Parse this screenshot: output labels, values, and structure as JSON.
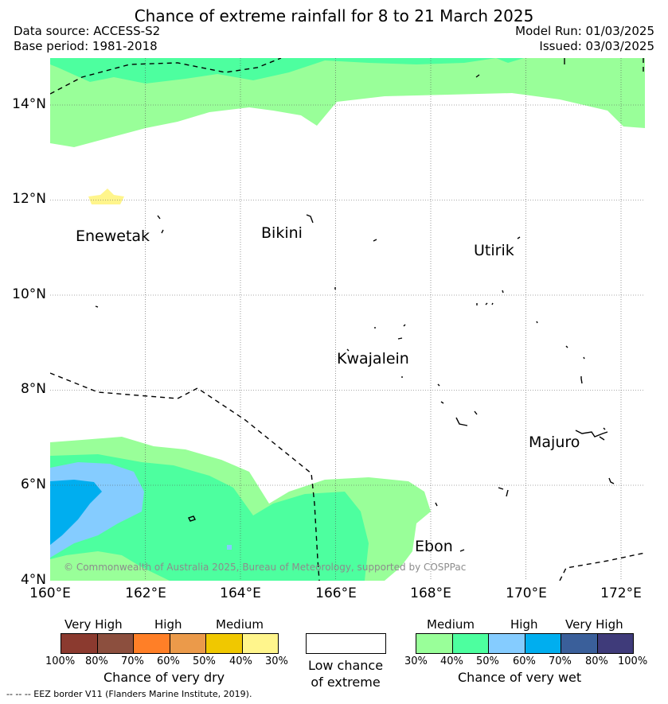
{
  "header": {
    "title": "Chance of extreme rainfall for 8 to 21 March 2025",
    "data_source": "Data source: ACCESS-S2",
    "base_period": "Base period: 1981-2018",
    "model_run": "Model Run: 01/03/2025",
    "issued": "Issued: 03/03/2025"
  },
  "map": {
    "lat_ticks": [
      "14°N",
      "12°N",
      "10°N",
      "8°N",
      "6°N",
      "4°N"
    ],
    "lon_ticks": [
      "160°E",
      "162°E",
      "164°E",
      "166°E",
      "168°E",
      "170°E",
      "172°E"
    ],
    "lat_range": [
      4,
      15
    ],
    "lon_range": [
      160,
      172.5
    ],
    "gridlines": true,
    "places": [
      "Enewetak",
      "Bikini",
      "Utirik",
      "Kwajalein",
      "Majuro",
      "Ebon"
    ],
    "copyright": "© Commonwealth of Australia 2025, Bureau of Meteorology, supported by COSPPac"
  },
  "legend": {
    "dry": {
      "levels": [
        "Very High",
        "High",
        "Medium"
      ],
      "ticks": [
        "100%",
        "80%",
        "70%",
        "60%",
        "50%",
        "40%",
        "30%"
      ],
      "colors": [
        "#8b3a2f",
        "#8c4f3e",
        "#ff7f27",
        "#eb9a4a",
        "#f0c800",
        "#fff58c"
      ],
      "caption": "Chance of very dry"
    },
    "low": {
      "caption_line1": "Low chance",
      "caption_line2": "of extreme",
      "color": "#ffffff"
    },
    "wet": {
      "levels": [
        "Medium",
        "High",
        "Very High"
      ],
      "ticks": [
        "30%",
        "40%",
        "50%",
        "60%",
        "70%",
        "80%",
        "100%"
      ],
      "colors": [
        "#99ff99",
        "#4dff9f",
        "#85ccff",
        "#00aeef",
        "#3a5f9a",
        "#3f3b7a"
      ],
      "caption": "Chance of very wet"
    }
  },
  "footnote": "-- -- -- EEZ border V11 (Flanders Marine Institute, 2019)."
}
